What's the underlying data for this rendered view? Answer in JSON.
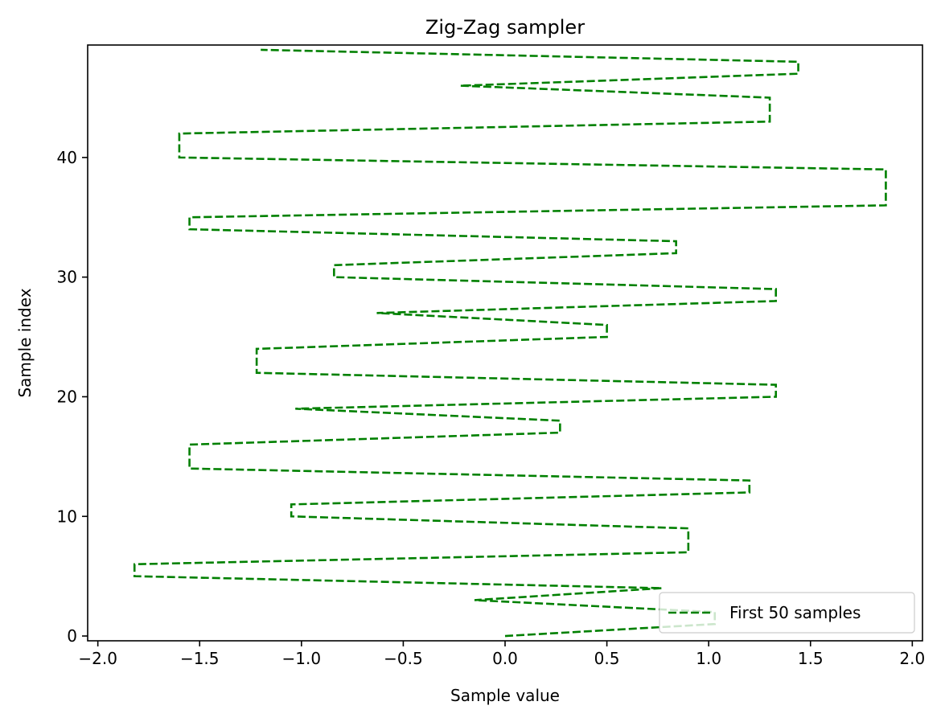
{
  "chart_data": {
    "type": "line",
    "title": "Zig-Zag sampler",
    "xlabel": "Sample value",
    "ylabel": "Sample index",
    "xlim": [
      -2.05,
      2.05
    ],
    "ylim": [
      -0.4,
      49.4
    ],
    "xticks": [
      -2.0,
      -1.5,
      -1.0,
      -0.5,
      0.0,
      0.5,
      1.0,
      1.5,
      2.0
    ],
    "xtick_labels": [
      "−2.0",
      "−1.5",
      "−1.0",
      "−0.5",
      "0.0",
      "0.5",
      "1.0",
      "1.5",
      "2.0"
    ],
    "yticks": [
      0,
      10,
      20,
      30,
      40
    ],
    "ytick_labels": [
      "0",
      "10",
      "20",
      "30",
      "40"
    ],
    "grid": false,
    "legend_position": "lower-right",
    "series": [
      {
        "name": "First 50 samples",
        "color": "#008000",
        "linestyle": "dashed",
        "x": [
          0.0,
          1.03,
          1.03,
          -0.15,
          0.77,
          -1.82,
          -1.82,
          0.9,
          0.9,
          0.9,
          -1.05,
          -1.05,
          1.2,
          1.2,
          -1.55,
          -1.55,
          -1.55,
          0.27,
          0.27,
          -1.03,
          1.33,
          1.33,
          -1.22,
          -1.22,
          -1.22,
          0.5,
          0.5,
          -0.63,
          1.33,
          1.33,
          -0.84,
          -0.84,
          0.84,
          0.84,
          -1.55,
          -1.55,
          1.87,
          1.87,
          1.87,
          1.87,
          -1.6,
          -1.6,
          -1.6,
          1.3,
          1.3,
          1.3,
          -0.22,
          1.44,
          1.44,
          -1.2
        ],
        "y": [
          0,
          1,
          2,
          3,
          4,
          5,
          6,
          7,
          8,
          9,
          10,
          11,
          12,
          13,
          14,
          15,
          16,
          17,
          18,
          19,
          20,
          21,
          22,
          23,
          24,
          25,
          26,
          27,
          28,
          29,
          30,
          31,
          32,
          33,
          34,
          35,
          36,
          37,
          38,
          39,
          40,
          41,
          42,
          43,
          44,
          45,
          46,
          47,
          48,
          49
        ]
      }
    ]
  }
}
